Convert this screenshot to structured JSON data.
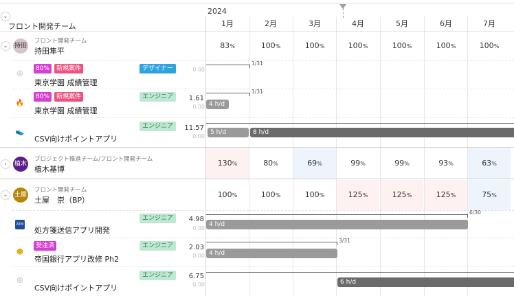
{
  "header": {
    "year": "2024",
    "team_column": "フロント開発チーム",
    "months": [
      "1月",
      "2月",
      "3月",
      "4月",
      "5月",
      "6月",
      "7月"
    ]
  },
  "persons": [
    {
      "avatar": "持田",
      "avatar_color": "#d8c3c8",
      "team": "フロント開発チーム",
      "name": "持田隼平",
      "utilization": [
        "83",
        "100",
        "100",
        "100",
        "100",
        "100",
        "100"
      ],
      "projects": [
        {
          "probability": "80%",
          "status": "新規案件",
          "role": "デザイナー",
          "name": "東京学園 成績管理",
          "hours": "",
          "hours_sub": "0.00",
          "icon": "plus-circle-icon",
          "end_label": "1/31",
          "bar": ""
        },
        {
          "probability": "80%",
          "status": "新規案件",
          "role": "エンジニア",
          "name": "東京学園 成績管理",
          "hours": "1.61",
          "hours_sub": "0.00",
          "icon": "flame-icon",
          "end_label": "1/31",
          "bar": "4 h/d"
        },
        {
          "probability": "",
          "status": "",
          "role": "エンジニア",
          "name": "CSV向けポイントアプリ",
          "hours": "11.57",
          "hours_sub": "0.00",
          "icon": "shoe-icon",
          "end_label": "",
          "bar": "5 h/d",
          "bar2": "8 h/d"
        }
      ]
    },
    {
      "avatar": "植木",
      "avatar_color": "#5b1e8c",
      "team": "プロジェクト推進チーム/フロント開発チーム",
      "name": "植木基博",
      "utilization": [
        "130",
        "80",
        "69",
        "99",
        "99",
        "93",
        "63"
      ]
    },
    {
      "avatar": "土屋",
      "avatar_color": "#b8860b",
      "team": "フロント開発チーム",
      "name": "土屋　崇（BP）",
      "utilization": [
        "100",
        "100",
        "100",
        "125",
        "125",
        "125",
        "75"
      ],
      "projects": [
        {
          "probability": "",
          "status": "",
          "role": "エンジニア",
          "name": "処方箋送信アプリ開発",
          "hours": "4.98",
          "hours_sub": "0.00",
          "icon": "atm-icon",
          "end_label": "6/30",
          "bar": "4 h/d"
        },
        {
          "probability": "",
          "status": "受注済",
          "role": "エンジニア",
          "name": "帝国銀行アプリ改修 Ph2",
          "hours": "2.03",
          "hours_sub": "0.00",
          "icon": "smiley-icon",
          "end_label": "3/31",
          "bar": "4 h/d"
        },
        {
          "probability": "",
          "status": "",
          "role": "エンジニア",
          "name": "CSV向けポイントアプリ",
          "hours": "6.75",
          "hours_sub": "0.00",
          "icon": "plus-circle-icon",
          "end_label": "",
          "bar": "6 h/d"
        }
      ]
    }
  ],
  "percent_unit": "%",
  "colors": {
    "tag_probability": "#d63fd1",
    "tag_new": "#f0507e",
    "tag_ordered": "#d63fd1",
    "role_designer": "#2fa3e0",
    "role_engineer_bg": "#bfe8d2",
    "role_engineer_text": "#2d7a53",
    "over_bg": "#fdf1f1",
    "under_bg": "#eef4fc"
  }
}
